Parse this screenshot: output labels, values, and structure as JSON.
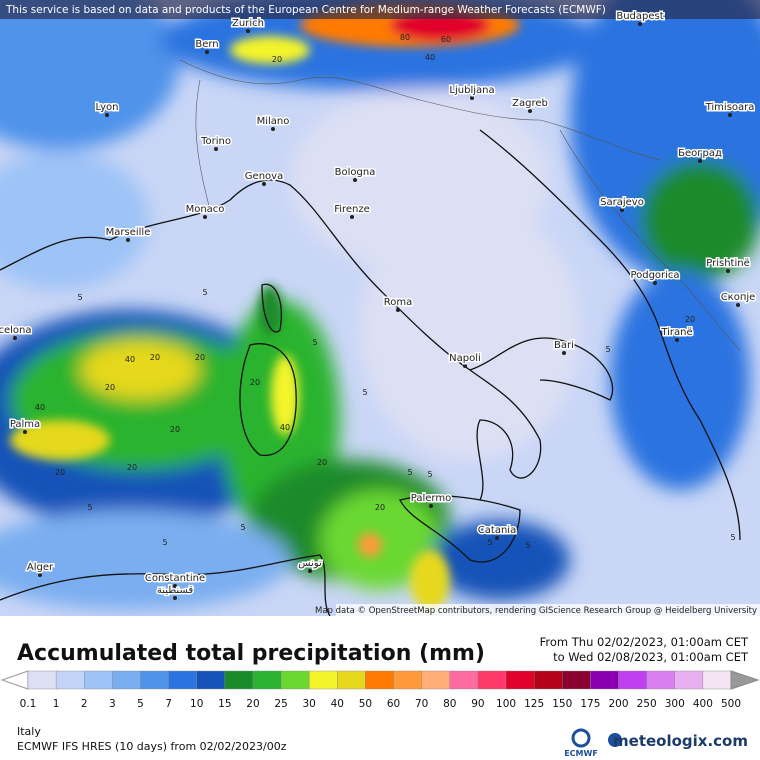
{
  "header": {
    "notice": "This service is based on data and products of the European Centre for Medium-range Weather Forecasts (ECMWF)"
  },
  "map": {
    "cities": [
      "Bern",
      "Zurich",
      "Budapest",
      "Lyon",
      "Ljubljana",
      "Zagreb",
      "Timisoara",
      "Milano",
      "Torino",
      "Београд",
      "Bologna",
      "Genova",
      "Sarajevo",
      "Monaco",
      "Marseille",
      "Firenze",
      "Podgorica",
      "Prishtinë",
      "Roma",
      "Скопје",
      "Tiranë",
      "celona",
      "Bari",
      "Napoli",
      "Palma",
      "Palermo",
      "Catania",
      "Alger",
      "Constantine",
      "قسنطينة",
      "تونس"
    ],
    "contour_labels": [
      5,
      20,
      40,
      80,
      60,
      40,
      20,
      5,
      5,
      5,
      20,
      40,
      20,
      20,
      20,
      40,
      20,
      20,
      5,
      5,
      20,
      20,
      5,
      5,
      5,
      20,
      5,
      5,
      5,
      5
    ],
    "attribution": "Map data © OpenStreetMap contributors, rendering GIScience Research Group @ Heidelberg University"
  },
  "title": "Accumulated total precipitation (mm)",
  "period": {
    "from": "From Thu 02/02/2023, 01:00am CET",
    "to": "to Wed 02/08/2023, 01:00am CET"
  },
  "legend": {
    "ticks": [
      0.1,
      1,
      2,
      3,
      5,
      7,
      10,
      15,
      20,
      25,
      30,
      40,
      50,
      60,
      70,
      80,
      90,
      100,
      125,
      150,
      175,
      200,
      250,
      300,
      400,
      500
    ],
    "colors": [
      "#dde0f4",
      "#c4d4f8",
      "#9ec3f7",
      "#7aaef0",
      "#4f93ea",
      "#2b73e0",
      "#1452b8",
      "#1a8a2a",
      "#29b32e",
      "#6ad830",
      "#f4f42a",
      "#e6d81c",
      "#ff7a00",
      "#ff9a3a",
      "#ffae78",
      "#ff6aa0",
      "#ff3a6a",
      "#e0002a",
      "#b40018",
      "#8a0030",
      "#8a00b0",
      "#c040f0",
      "#d880f0",
      "#e8b0f0",
      "#f4e4f4"
    ]
  },
  "footer": {
    "region": "Italy",
    "model": "ECMWF IFS HRES (10 days) from 02/02/2023/00z",
    "ecmwf": "ECMWF",
    "brand": "meteologix.com"
  }
}
